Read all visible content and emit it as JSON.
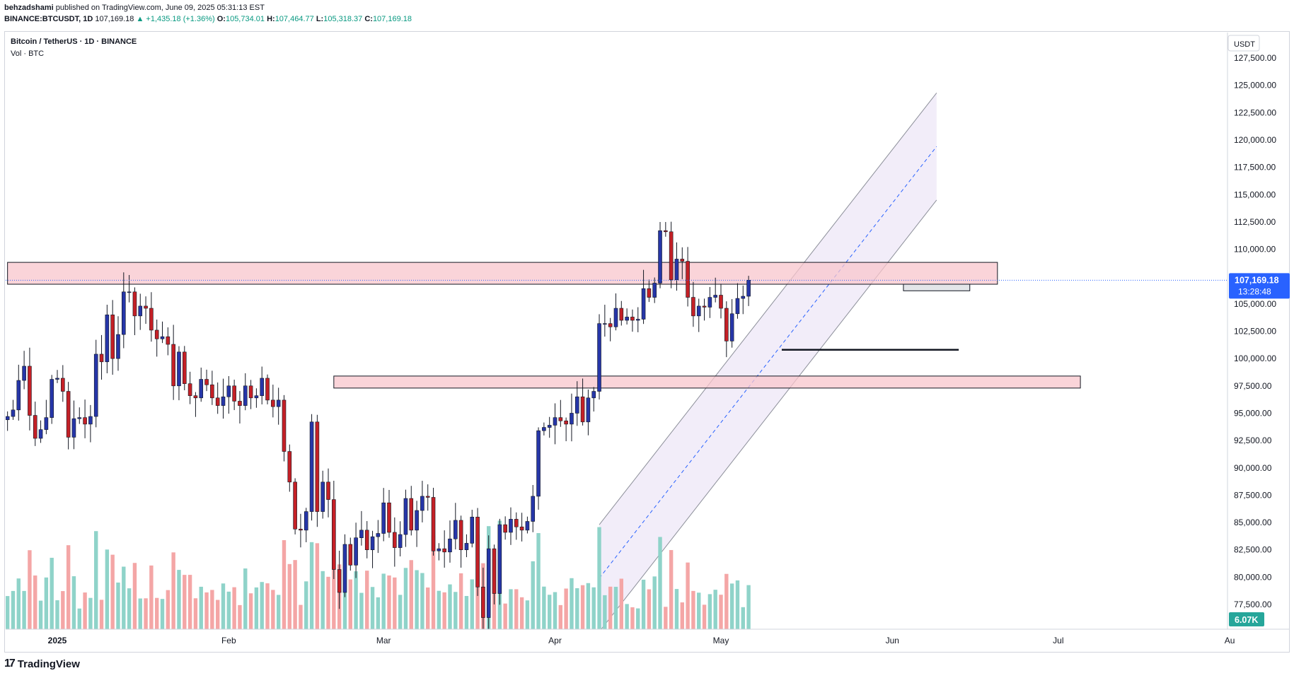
{
  "header": {
    "author": "behzadshami",
    "published": "published on TradingView.com, June 09, 2025 05:31:13 EST",
    "symbol": "BINANCE:BTCUSDT, 1D",
    "last": "107,169.18",
    "change": "▲ +1,435.18 (+1.36%)",
    "o_label": "O:",
    "o": "105,734.01",
    "h_label": "H:",
    "h": "107,464.77",
    "l_label": "L:",
    "l": "105,318.37",
    "c_label": "C:",
    "c": "107,169.18"
  },
  "legend": {
    "title": "Bitcoin / TetherUS · 1D · BINANCE",
    "volume": "Vol · BTC"
  },
  "footer": {
    "brand": "TradingView"
  },
  "colors": {
    "up": "#2636a8",
    "down": "#c42026",
    "vol_up": "#8fd3c9",
    "vol_down": "#f4a6a6",
    "zone": "#f8c6cc",
    "channel": "#ece6f7",
    "price_tag": "#2962ff",
    "vol_tag": "#26a69a"
  },
  "chart_data": {
    "type": "candlestick",
    "currency": "USDT",
    "last_price_label": "107,169.18",
    "countdown": "13:28:48",
    "volume_label": "6.07K",
    "y_range": [
      75000,
      130000
    ],
    "y_ticks": [
      "127,500.00",
      "125,000.00",
      "122,500.00",
      "120,000.00",
      "117,500.00",
      "115,000.00",
      "112,500.00",
      "110,000.00",
      "107,500.00",
      "105,000.00",
      "102,500.00",
      "100,000.00",
      "97,500.00",
      "95,000.00",
      "92,500.00",
      "90,000.00",
      "87,500.00",
      "85,000.00",
      "82,500.00",
      "80,000.00",
      "77,500.00"
    ],
    "x_labels": [
      {
        "label": "2025",
        "bold": true,
        "date": "2025-01-01"
      },
      {
        "label": "Feb",
        "date": "2025-02-01"
      },
      {
        "label": "Mar",
        "date": "2025-03-01"
      },
      {
        "label": "Apr",
        "date": "2025-04-01"
      },
      {
        "label": "May",
        "date": "2025-05-01"
      },
      {
        "label": "Jun",
        "date": "2025-06-01"
      },
      {
        "label": "Jul",
        "date": "2025-07-01"
      },
      {
        "label": "Au",
        "date": "2025-08-01"
      }
    ],
    "first_date": "2024-12-23",
    "ohlc_close": [
      94700,
      95300,
      98000,
      99300,
      94800,
      92700,
      93500,
      94600,
      98100,
      98200,
      97000,
      92800,
      94500,
      94600,
      94000,
      94700,
      100400,
      99700,
      104000,
      100000,
      102200,
      106100,
      106100,
      103900,
      104800,
      104600,
      102600,
      101800,
      102000,
      101300,
      97500,
      100600,
      97700,
      96600,
      96400,
      98100,
      97600,
      96400,
      95700,
      96500,
      97500,
      96100,
      95700,
      97500,
      96400,
      96600,
      98200,
      96200,
      95600,
      96200,
      91500,
      88700,
      84400,
      84300,
      86000,
      94200,
      86000,
      88700,
      87100,
      80700,
      78600,
      83000,
      81100,
      83600,
      84300,
      82500,
      83700,
      84000,
      86800,
      84100,
      82700,
      83900,
      87200,
      84300,
      86100,
      87400,
      87300,
      82400,
      82600,
      82300,
      83500,
      85200,
      82500,
      83100,
      85500,
      79100,
      76300,
      82600,
      78500,
      84800,
      84100,
      85300,
      84600,
      84300,
      85100,
      87400,
      93400,
      93700,
      93900,
      94600,
      94300,
      94000,
      95000,
      96500,
      94200,
      96400,
      97000,
      103200,
      103200,
      102900,
      104600,
      103500,
      103800,
      103500,
      103600,
      106400,
      105600,
      106900,
      111700,
      111600,
      107200,
      109100,
      108900,
      105600,
      103900,
      104800,
      104700,
      105600,
      105800,
      104600,
      101600,
      104100,
      105500,
      105700,
      107169
    ],
    "zones": [
      {
        "from": 106800,
        "to": 108800,
        "start": "2024-12-23",
        "end": "2025-06-20"
      },
      {
        "from": 97300,
        "to": 98400,
        "start": "2025-02-20",
        "end": "2025-07-05"
      },
      {
        "from": 106200,
        "to": 106800,
        "start": "2025-06-03",
        "end": "2025-06-15"
      }
    ],
    "support_line": {
      "price": 100800,
      "start": "2025-05-12",
      "end": "2025-06-13"
    },
    "channel": {
      "lower_start": [
        "2025-04-09",
        75000
      ],
      "lower_end": [
        "2025-06-09",
        114500
      ],
      "upper_start": [
        "2025-04-09",
        84800
      ],
      "upper_end": [
        "2025-06-09",
        124300
      ]
    }
  }
}
